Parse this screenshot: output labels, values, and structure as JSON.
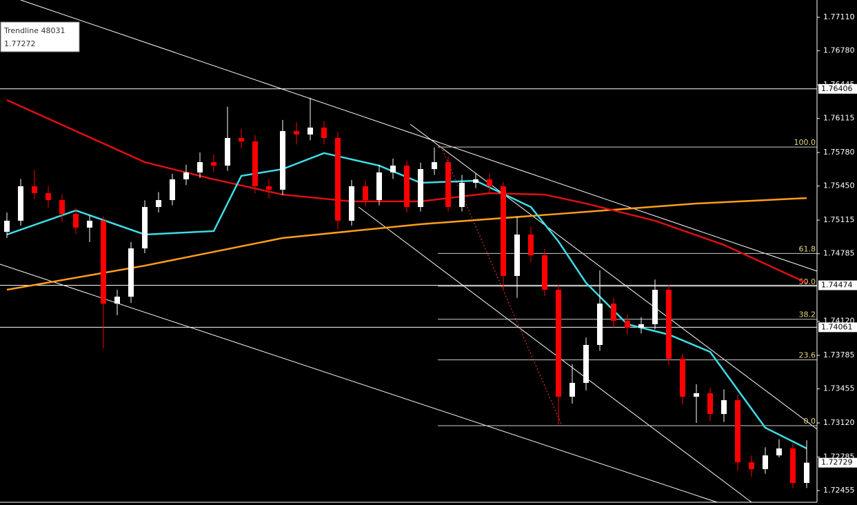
{
  "chart_data": {
    "type": "candlestick",
    "categories": [
      null,
      null,
      null,
      null,
      null,
      null,
      null,
      null,
      null,
      null,
      null,
      null,
      null,
      null,
      null,
      null,
      null,
      null,
      null,
      null,
      null,
      null,
      null,
      null,
      null,
      null,
      null,
      null,
      null,
      null,
      null,
      null,
      null,
      null,
      null,
      null,
      null,
      null,
      null,
      null,
      null,
      null,
      null,
      null,
      null,
      null,
      null,
      null,
      null,
      null,
      null,
      null,
      null,
      null,
      null,
      null,
      null,
      null,
      null
    ],
    "open": [
      1.75,
      1.75109,
      1.75448,
      1.7538,
      1.75312,
      1.75176,
      1.75041,
      1.75109,
      1.74294,
      1.74362,
      1.74837,
      1.75244,
      1.75312,
      1.75516,
      1.75584,
      1.75685,
      1.75651,
      1.75923,
      1.75889,
      1.75448,
      1.75414,
      1.75991,
      1.75957,
      1.76025,
      1.75923,
      1.75109,
      1.75448,
      1.75312,
      1.75584,
      1.75651,
      1.75244,
      1.75617,
      1.75685,
      1.75244,
      1.75482,
      1.75516,
      1.75448,
      1.74566,
      1.74973,
      1.74769,
      1.7443,
      1.73378,
      1.73514,
      1.73887,
      1.74294,
      1.74125,
      1.74057,
      1.74091,
      1.7443,
      1.73751,
      1.73378,
      1.73412,
      1.73208,
      1.73344,
      1.72733,
      1.72666,
      1.72801,
      1.72869,
      1.7253
    ],
    "high": [
      1.7519,
      1.7552,
      1.7561,
      1.7545,
      1.7537,
      1.7523,
      1.7516,
      1.7515,
      1.7443,
      1.749,
      1.7531,
      1.7539,
      1.7557,
      1.7566,
      1.7578,
      1.7576,
      1.7623,
      1.7601,
      1.7595,
      1.7552,
      1.761,
      1.7608,
      1.7632,
      1.7609,
      1.7598,
      1.7551,
      1.755,
      1.7566,
      1.7572,
      1.757,
      1.7568,
      1.7583,
      1.7574,
      1.7556,
      1.7558,
      1.7557,
      1.7549,
      1.7515,
      1.7505,
      1.7483,
      1.7448,
      1.737,
      1.7396,
      1.7462,
      1.7435,
      1.7419,
      1.7416,
      1.7453,
      1.7448,
      1.738,
      1.735,
      1.7347,
      1.7345,
      1.734,
      1.728,
      1.7288,
      1.7296,
      1.7292,
      1.7295
    ],
    "low": [
      1.7494,
      1.7506,
      1.7532,
      1.7524,
      1.751,
      1.7498,
      1.749,
      1.73853,
      1.7418,
      1.743,
      1.7479,
      1.7519,
      1.7526,
      1.7546,
      1.7553,
      1.7559,
      1.756,
      1.7582,
      1.7538,
      1.7533,
      1.7536,
      1.7586,
      1.759,
      1.7586,
      1.7502,
      1.7506,
      1.7525,
      1.7526,
      1.7552,
      1.7519,
      1.752,
      1.7556,
      1.752,
      1.752,
      1.7543,
      1.7538,
      1.7442,
      1.7435,
      1.747,
      1.7437,
      1.73107,
      1.7331,
      1.7344,
      1.7383,
      1.7406,
      1.7399,
      1.74,
      1.7404,
      1.7369,
      1.733,
      1.7312,
      1.7314,
      1.7313,
      1.7265,
      1.7259,
      1.7262,
      1.7278,
      1.7248,
      1.7248
    ],
    "close": [
      1.75109,
      1.75448,
      1.7538,
      1.75312,
      1.75176,
      1.75041,
      1.75109,
      1.74294,
      1.74362,
      1.74837,
      1.75244,
      1.75312,
      1.75516,
      1.75584,
      1.75685,
      1.75651,
      1.75923,
      1.75889,
      1.75448,
      1.75414,
      1.75991,
      1.75957,
      1.76025,
      1.75923,
      1.75109,
      1.75448,
      1.75312,
      1.75584,
      1.75651,
      1.75244,
      1.75617,
      1.75685,
      1.75244,
      1.75482,
      1.75516,
      1.75448,
      1.74566,
      1.74973,
      1.74769,
      1.7443,
      1.73378,
      1.73514,
      1.73887,
      1.74294,
      1.74125,
      1.74057,
      1.74091,
      1.7443,
      1.73751,
      1.73378,
      1.73412,
      1.73208,
      1.73344,
      1.72733,
      1.72666,
      1.72801,
      1.72869,
      1.7253,
      1.72729
    ],
    "up_color": "#ffffff",
    "down_color": "#ff0000",
    "series": [
      {
        "color": "#ff9f1a",
        "x": [
          0,
          10,
          20,
          30,
          40,
          50,
          58
        ],
        "values": [
          1.7443,
          1.74667,
          1.74939,
          1.75075,
          1.75176,
          1.75278,
          1.75332
        ]
      },
      {
        "color": "#e01010",
        "x": [
          0,
          5,
          10,
          15,
          20,
          25,
          30,
          35,
          39,
          42,
          47,
          52,
          58
        ],
        "values": [
          1.76296,
          1.75991,
          1.75685,
          1.75516,
          1.75366,
          1.75299,
          1.75299,
          1.7538,
          1.75366,
          1.75278,
          1.75109,
          1.74871,
          1.74498
        ]
      },
      {
        "color": "#3fdde6",
        "x": [
          0,
          5,
          10,
          15,
          17,
          20,
          23,
          27,
          30,
          34,
          38,
          40,
          42,
          45,
          48,
          51,
          55,
          58
        ],
        "values": [
          1.74973,
          1.7521,
          1.74973,
          1.75007,
          1.7555,
          1.75617,
          1.75774,
          1.75651,
          1.75482,
          1.75502,
          1.75244,
          1.74905,
          1.74498,
          1.74091,
          1.73989,
          1.73819,
          1.73073,
          1.72869
        ]
      }
    ],
    "ylim": [
      1.7234,
      1.7728
    ],
    "yticks": [
      {
        "value": 1.7711,
        "label": "1.77110"
      },
      {
        "value": 1.7678,
        "label": "1.76780"
      },
      {
        "value": 1.76445,
        "label": "1.76445"
      },
      {
        "value": 1.76115,
        "label": "1.76115"
      },
      {
        "value": 1.7578,
        "label": "1.75780"
      },
      {
        "value": 1.7545,
        "label": "1.75450"
      },
      {
        "value": 1.75115,
        "label": "1.75115"
      },
      {
        "value": 1.74785,
        "label": "1.74785"
      },
      {
        "value": 1.7412,
        "label": "1.74120"
      },
      {
        "value": 1.73785,
        "label": "1.73785"
      },
      {
        "value": 1.73455,
        "label": "1.73455"
      },
      {
        "value": 1.7312,
        "label": "1.73120"
      },
      {
        "value": 1.72785,
        "label": "1.72785"
      },
      {
        "value": 1.72455,
        "label": "1.72455"
      }
    ],
    "hlines": [
      {
        "value": 1.76406,
        "label": "1.76406"
      },
      {
        "value": 1.74474,
        "label": "1.74474"
      },
      {
        "value": 1.74061,
        "label": "1.74061"
      }
    ],
    "price_label": {
      "value": 1.72729,
      "label": "1.72729"
    },
    "fibo": [
      {
        "value": 1.75834,
        "label": "100.0"
      },
      {
        "value": 1.74787,
        "label": "61.8"
      },
      {
        "value": 1.74464,
        "label": "50.0"
      },
      {
        "value": 1.7414,
        "label": "38.2"
      },
      {
        "value": 1.7374,
        "label": "23.6"
      },
      {
        "value": 1.73093,
        "label": "0.0"
      }
    ],
    "tooltip": {
      "title": "Trendline 48031",
      "value": "1.77272"
    }
  }
}
